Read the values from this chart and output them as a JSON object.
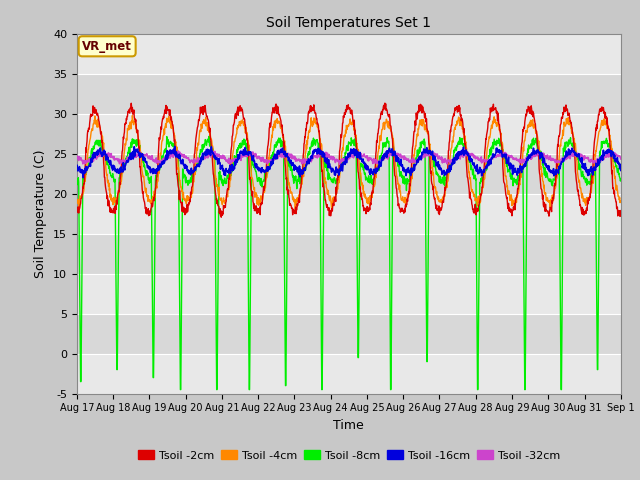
{
  "title": "Soil Temperatures Set 1",
  "xlabel": "Time",
  "ylabel": "Soil Temperature (C)",
  "ylim": [
    -5,
    40
  ],
  "yticks": [
    -5,
    0,
    5,
    10,
    15,
    20,
    25,
    30,
    35,
    40
  ],
  "bg_color": "#c8c8c8",
  "line_colors": {
    "2cm": "#dd0000",
    "4cm": "#ff8800",
    "8cm": "#00ee00",
    "16cm": "#0000dd",
    "32cm": "#cc44cc"
  },
  "legend_labels": [
    "Tsoil -2cm",
    "Tsoil -4cm",
    "Tsoil -8cm",
    "Tsoil -16cm",
    "Tsoil -32cm"
  ],
  "annotation_text": "VR_met",
  "annotation_fg": "#660000",
  "annotation_bg": "#ffffcc",
  "annotation_border": "#cc9900",
  "band_colors": [
    "#e8e8e8",
    "#d8d8d8"
  ],
  "n_points": 1440,
  "mean_temp": 24.0
}
